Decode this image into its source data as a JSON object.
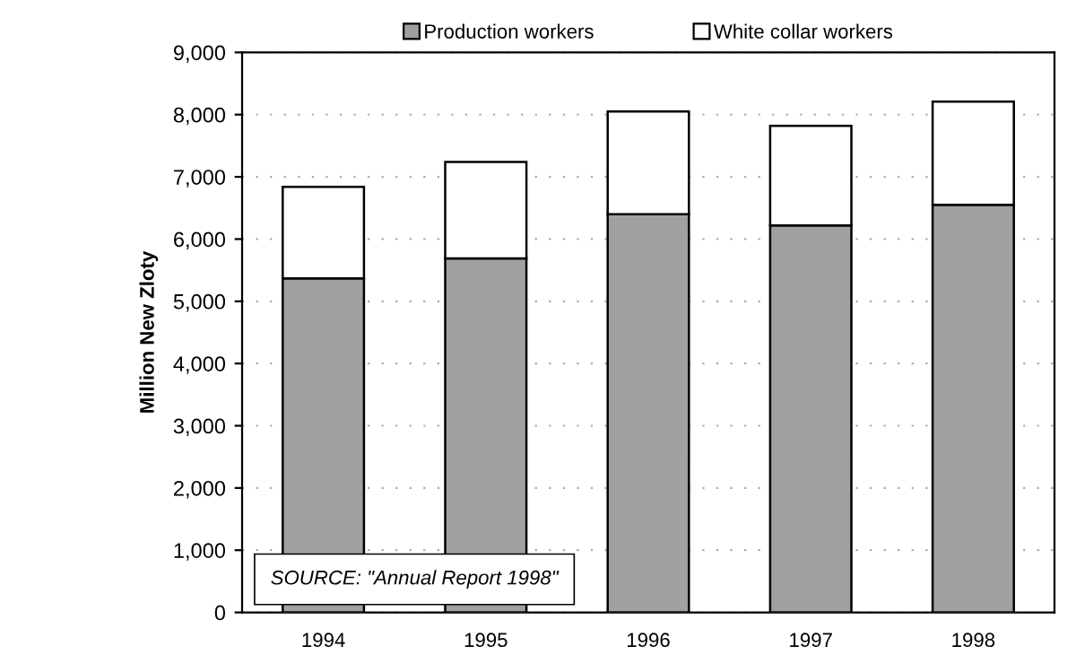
{
  "chart_data": {
    "type": "bar",
    "stacked": true,
    "ylabel": "Million New Zloty",
    "categories": [
      "1994",
      "1995",
      "1996",
      "1997",
      "1998"
    ],
    "series": [
      {
        "name": "Production workers",
        "color": "#a0a0a0",
        "values": [
          5370,
          5690,
          6400,
          6220,
          6550
        ]
      },
      {
        "name": "White collar workers",
        "color": "#ffffff",
        "values": [
          1470,
          1550,
          1650,
          1600,
          1660
        ]
      }
    ],
    "ylim": [
      0,
      9000
    ],
    "yticks": [
      {
        "value": 0,
        "label": "0"
      },
      {
        "value": 1000,
        "label": "1,000"
      },
      {
        "value": 2000,
        "label": "2,000"
      },
      {
        "value": 3000,
        "label": "3,000"
      },
      {
        "value": 4000,
        "label": "4,000"
      },
      {
        "value": 5000,
        "label": "5,000"
      },
      {
        "value": 6000,
        "label": "6,000"
      },
      {
        "value": 7000,
        "label": "7,000"
      },
      {
        "value": 8000,
        "label": "8,000"
      },
      {
        "value": 9000,
        "label": "9,000"
      }
    ],
    "grid": "y",
    "legend": "top",
    "annotations": [
      "SOURCE: \"Annual Report 1998\""
    ]
  }
}
